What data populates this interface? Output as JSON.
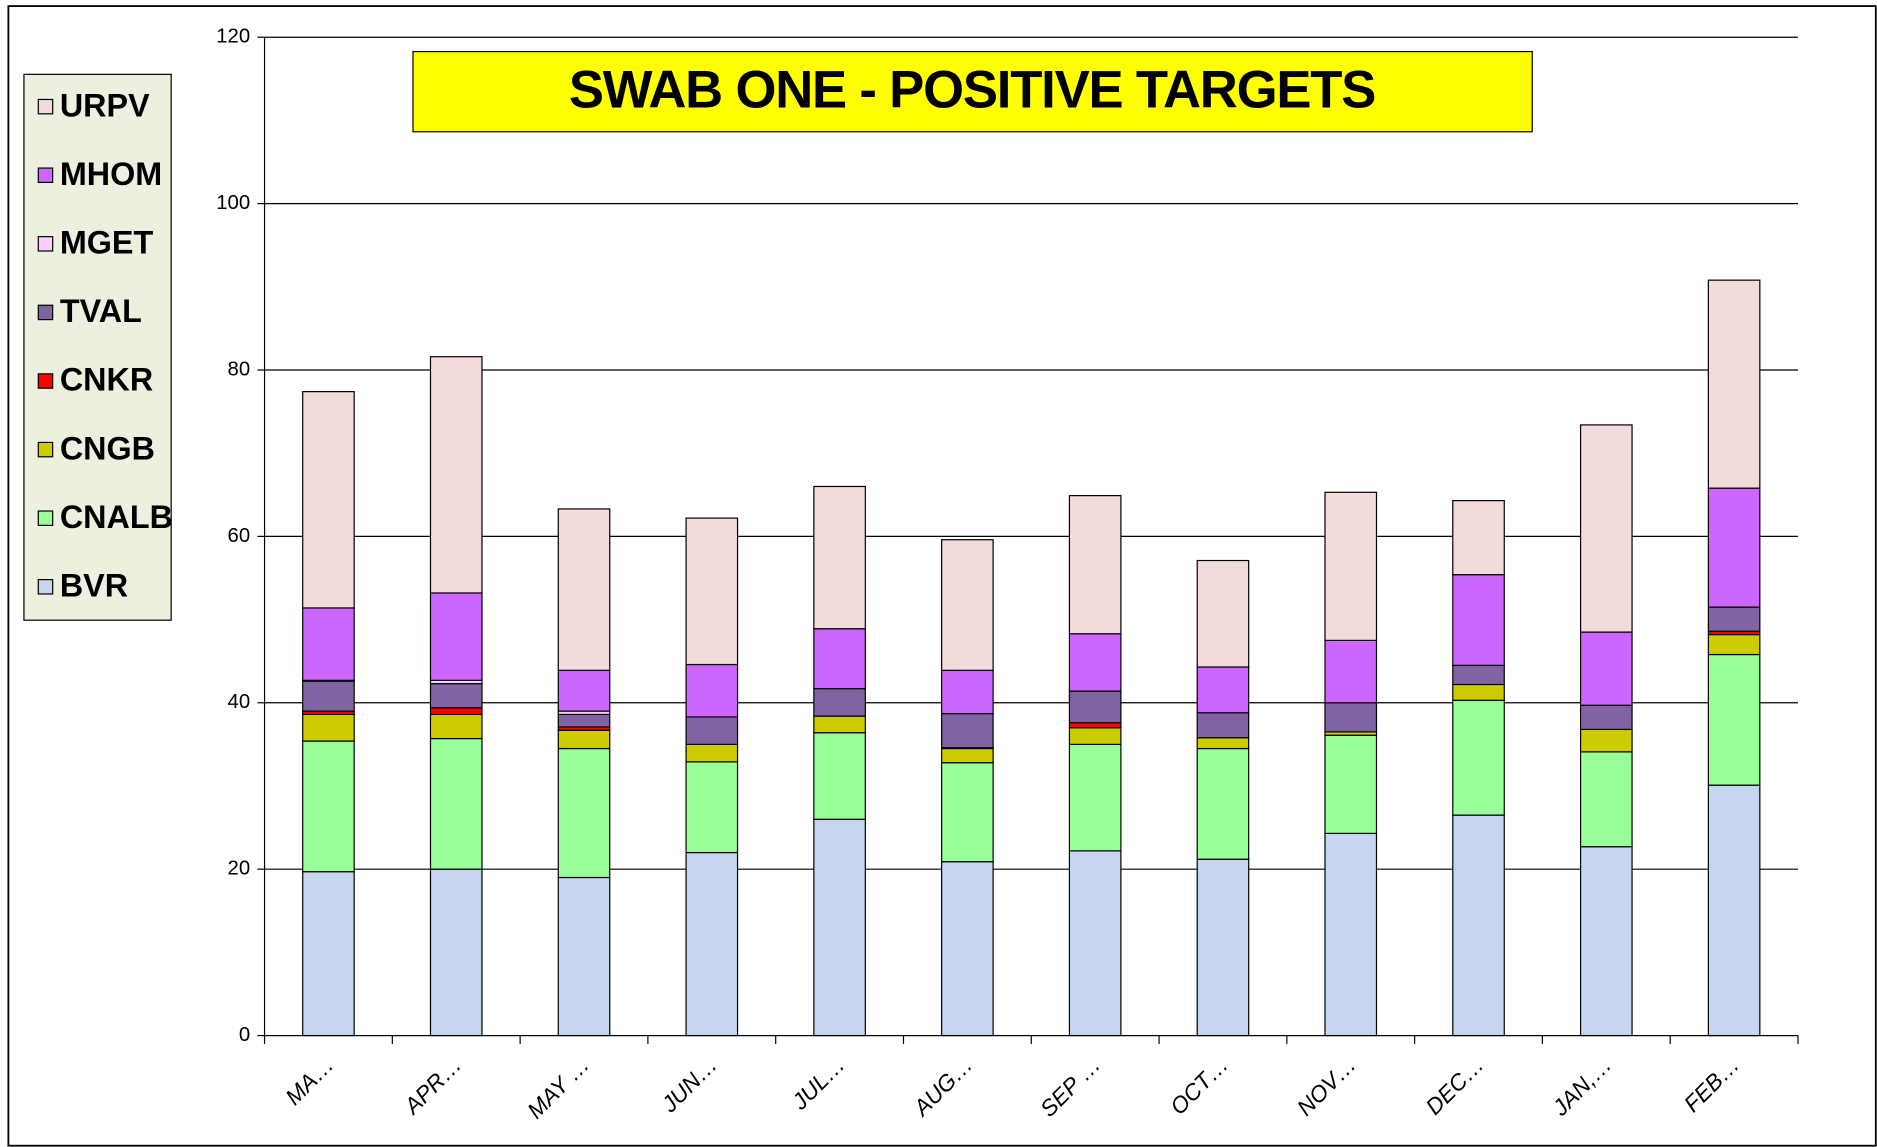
{
  "chart_data": {
    "type": "stacked_bar",
    "title": "SWAB ONE - POSITIVE TARGETS",
    "categories": [
      "MA…",
      "APR…",
      "MAY …",
      "JUN…",
      "JUL…",
      "AUG…",
      "SEP …",
      "OCT…",
      "NOV…",
      "DEC…",
      "JAN,…",
      "FEB…"
    ],
    "series": [
      {
        "name": "BVR",
        "color": "#c5d6ee",
        "values": [
          19.7,
          20.0,
          19.0,
          22.0,
          26.0,
          20.9,
          22.2,
          21.2,
          24.3,
          26.5,
          22.7,
          30.1
        ]
      },
      {
        "name": "CNALB",
        "color": "#99ff99",
        "values": [
          15.7,
          15.7,
          15.5,
          10.9,
          10.4,
          11.9,
          12.8,
          13.3,
          11.8,
          13.8,
          11.4,
          15.7
        ]
      },
      {
        "name": "CNGB",
        "color": "#cccc00",
        "values": [
          3.2,
          2.9,
          2.2,
          2.1,
          2.0,
          1.7,
          2.0,
          1.3,
          0.4,
          1.9,
          2.7,
          2.4
        ]
      },
      {
        "name": "CNKR",
        "color": "#ff0000",
        "values": [
          0.4,
          0.8,
          0.4,
          0,
          0,
          0.1,
          0.6,
          0,
          0,
          0,
          0,
          0.4
        ]
      },
      {
        "name": "TVAL",
        "color": "#8064a2",
        "values": [
          3.6,
          2.9,
          1.5,
          3.3,
          3.3,
          4.1,
          3.8,
          3.0,
          3.5,
          2.3,
          2.9,
          2.9
        ]
      },
      {
        "name": "MGET",
        "color": "#ffccff",
        "values": [
          0.1,
          0.4,
          0.4,
          0,
          0,
          0,
          0,
          0,
          0,
          0,
          0,
          0
        ]
      },
      {
        "name": "MHOM",
        "color": "#cc66ff",
        "values": [
          8.7,
          10.5,
          4.9,
          6.3,
          7.2,
          5.2,
          6.9,
          5.5,
          7.5,
          10.9,
          8.8,
          14.3
        ]
      },
      {
        "name": "URPV",
        "color": "#f2dcdb",
        "values": [
          26.0,
          28.4,
          19.4,
          17.6,
          17.1,
          15.7,
          16.6,
          12.8,
          17.8,
          8.9,
          24.9,
          25.0
        ]
      }
    ],
    "ylim": [
      0,
      120
    ],
    "yticks": [
      0,
      20,
      40,
      60,
      80,
      100,
      120
    ],
    "grid": true
  }
}
